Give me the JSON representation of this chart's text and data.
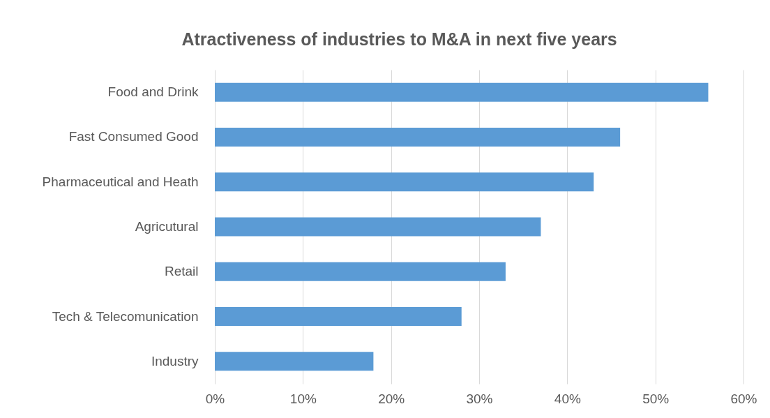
{
  "chart_data": {
    "type": "bar",
    "orientation": "horizontal",
    "title": "Atractiveness of industries to M&A in next five years",
    "categories": [
      "Food and Drink",
      "Fast Consumed Good",
      "Pharmaceutical and Heath",
      "Agricutural",
      "Retail",
      "Tech & Telecomunication",
      "Industry"
    ],
    "values": [
      56,
      46,
      43,
      37,
      33,
      28,
      18
    ],
    "color": "#5b9bd5",
    "xlim": [
      0,
      60
    ],
    "xticks": [
      {
        "value": 0,
        "label": "0%"
      },
      {
        "value": 10,
        "label": "10%"
      },
      {
        "value": 20,
        "label": "20%"
      },
      {
        "value": 30,
        "label": "30%"
      },
      {
        "value": 40,
        "label": "40%"
      },
      {
        "value": 50,
        "label": "50%"
      },
      {
        "value": 60,
        "label": "60%"
      }
    ],
    "grid": "x"
  }
}
